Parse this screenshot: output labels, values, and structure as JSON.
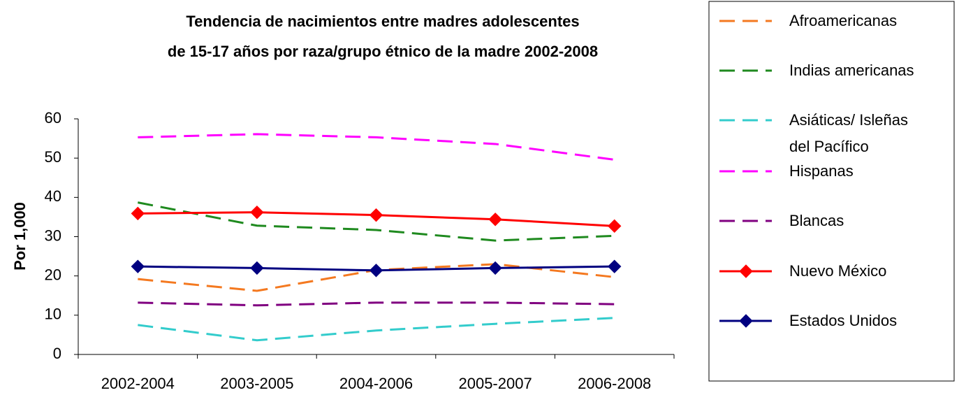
{
  "chart_data": {
    "type": "line",
    "title": [
      "Tendencia de nacimientos entre madres adolescentes",
      "de 15-17 años por raza/grupo étnico de la madre 2002-2008"
    ],
    "y_label": "Por 1,000",
    "categories": [
      "2002-2004",
      "2003-2005",
      "2004-2006",
      "2005-2007",
      "2006-2008"
    ],
    "ylim": [
      0,
      60
    ],
    "yticks": [
      0,
      10,
      20,
      30,
      40,
      50,
      60
    ],
    "legend": "right",
    "series": [
      {
        "name": "Afroamericanas",
        "color": "#f47920",
        "style": "dashed",
        "values": [
          19.2,
          16.2,
          21.5,
          23.0,
          19.7
        ]
      },
      {
        "name": "Indias americanas",
        "color": "#1f8a1f",
        "style": "dashed",
        "values": [
          38.7,
          32.8,
          31.7,
          29.0,
          30.2
        ]
      },
      {
        "name": "Asiáticas/ Isleñas del Pacífico",
        "color": "#33cccc",
        "style": "dashed",
        "values": [
          7.5,
          3.6,
          6.1,
          7.8,
          9.3
        ]
      },
      {
        "name": "Hispanas",
        "color": "#ff00ff",
        "style": "dashed",
        "values": [
          55.3,
          56.1,
          55.3,
          53.6,
          49.6
        ]
      },
      {
        "name": "Blancas",
        "color": "#800080",
        "style": "dashed",
        "values": [
          13.2,
          12.5,
          13.2,
          13.2,
          12.8
        ]
      },
      {
        "name": "Nuevo México",
        "color": "#ff0000",
        "style": "solid",
        "marker": "diamond",
        "values": [
          35.9,
          36.2,
          35.5,
          34.4,
          32.7
        ]
      },
      {
        "name": "Estados Unidos",
        "color": "#000080",
        "style": "solid",
        "marker": "diamond",
        "values": [
          22.4,
          22.0,
          21.4,
          22.0,
          22.4
        ]
      }
    ]
  }
}
